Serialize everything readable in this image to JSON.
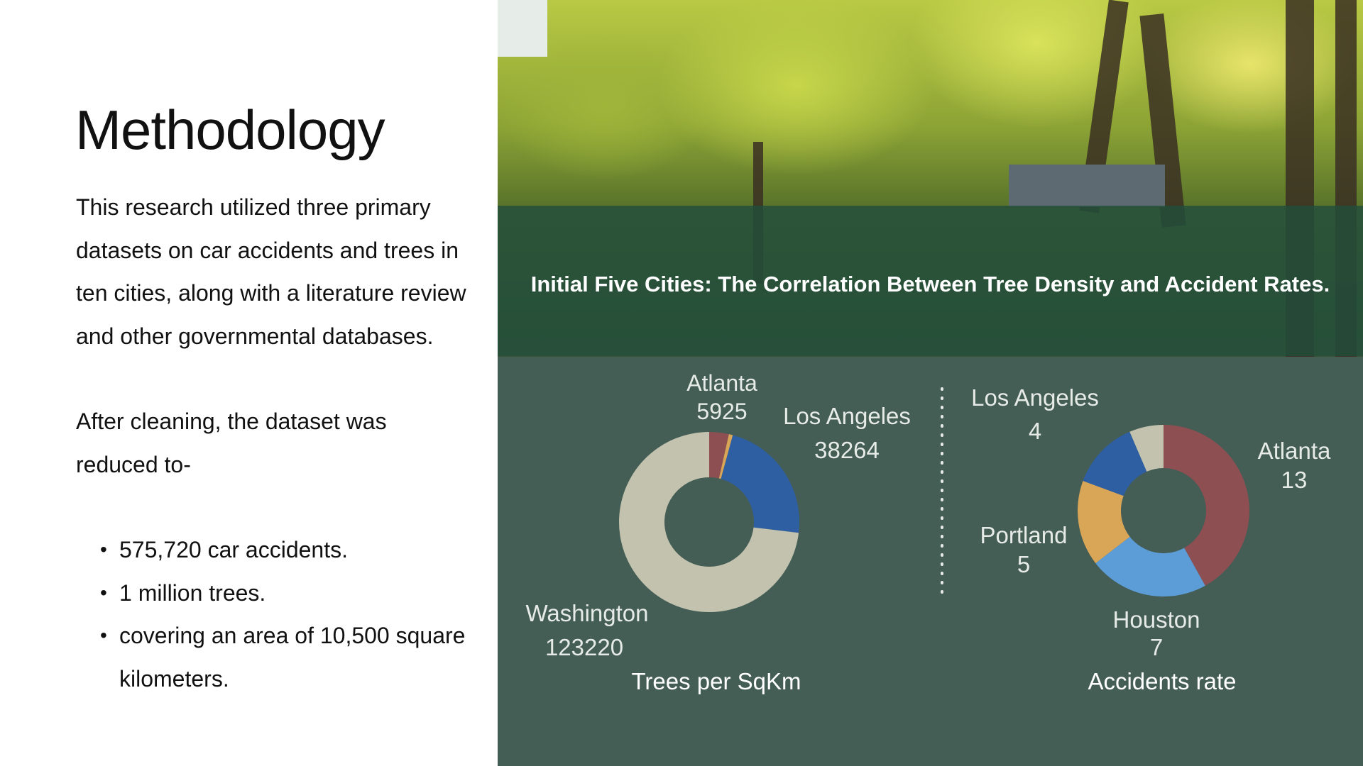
{
  "slide": {
    "title": "Methodology",
    "paragraph1": "This research utilized three primary datasets on car accidents and trees in ten cities, along with a literature review and other governmental databases.",
    "paragraph2": "After cleaning, the dataset was reduced to-",
    "bullets": [
      "575,720 car accidents.",
      "1 million trees.",
      "covering an area of 10,500 square kilometers."
    ]
  },
  "chart_title": "Initial Five Cities: The Correlation Between Tree Density and Accident Rates.",
  "colors": {
    "panel": "#445d55",
    "banner": "#224e3c",
    "red": "#8e4f52",
    "gold": "#d9a556",
    "blue": "#2f5fa3",
    "lightblue": "#5c9dd8",
    "beige": "#c2c2ae"
  },
  "chart_data": [
    {
      "type": "pie",
      "style": "donut",
      "title": "Trees per SqKm",
      "categories": [
        "Atlanta",
        "Portland",
        "Los Angeles",
        "Washington",
        "Houston"
      ],
      "values": [
        5925,
        1200,
        38264,
        123220,
        0
      ],
      "colors": [
        "#8e4f52",
        "#d9a556",
        "#2f5fa3",
        "#c2c2ae",
        "#5c9dd8"
      ],
      "labels": [
        {
          "name": "Atlanta",
          "value": "5925"
        },
        {
          "name": "Los Angeles",
          "value": "38264"
        },
        {
          "name": "Washington",
          "value": "123220"
        }
      ]
    },
    {
      "type": "pie",
      "style": "donut",
      "title": "Accidents rate",
      "categories": [
        "Atlanta",
        "Houston",
        "Portland",
        "Los Angeles",
        "Washington"
      ],
      "values": [
        13,
        7,
        5,
        4,
        2
      ],
      "colors": [
        "#8e4f52",
        "#5c9dd8",
        "#d9a556",
        "#2f5fa3",
        "#c2c2ae"
      ],
      "labels": [
        {
          "name": "Atlanta",
          "value": "13"
        },
        {
          "name": "Houston",
          "value": "7"
        },
        {
          "name": "Portland",
          "value": "5"
        },
        {
          "name": "Los Angeles",
          "value": "4"
        }
      ]
    }
  ]
}
